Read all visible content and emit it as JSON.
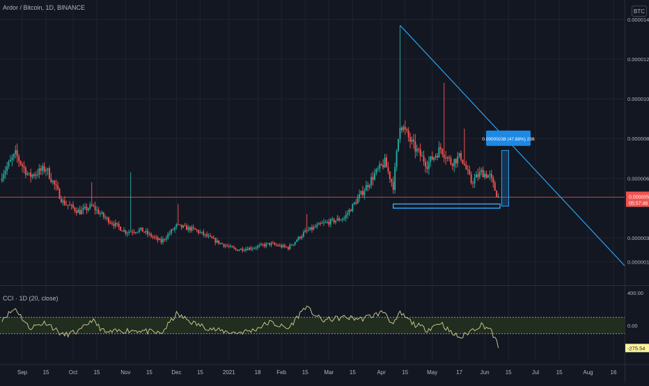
{
  "header": {
    "symbol_line": "Ardor / Bitcoin, 1D, BINANCE",
    "currency_badge": "BTC"
  },
  "indicator": {
    "legend": "CCI · 1D (20, close)"
  },
  "colors": {
    "background": "#131722",
    "up": "#26a69a",
    "down": "#ef5350",
    "drawing": "#2ea3f2",
    "cci_line": "#c8c48a",
    "cci_band": "#22301f",
    "price_line": "#ef5350",
    "label_blue": "#1e88e5",
    "label_yellow": "#fff59d"
  },
  "chart_data": [
    {
      "type": "candlestick",
      "title": "Ardor / Bitcoin, 1D, BINANCE",
      "y_tick_labels": [
        "0.00001400",
        "0.00001200",
        "0.00001000",
        "0.00000800",
        "0.00000600",
        "0.00000300",
        "0.00000180"
      ],
      "y_tick_values": [
        1.4e-05,
        1.2e-05,
        1e-05,
        8e-06,
        6e-06,
        3e-06,
        1.8e-06
      ],
      "x_tick_labels": [
        "Sep",
        "15",
        "Oct",
        "15",
        "Nov",
        "15",
        "Dec",
        "15",
        "2021",
        "18",
        "Feb",
        "15",
        "Mar",
        "15",
        "Apr",
        "15",
        "May",
        "17",
        "Jun",
        "15",
        "Jul",
        "15",
        "Aug",
        "16"
      ],
      "x_tick_dates": [
        "2020-09-01",
        "2020-09-15",
        "2020-10-01",
        "2020-10-15",
        "2020-11-01",
        "2020-11-15",
        "2020-12-01",
        "2020-12-15",
        "2021-01-01",
        "2021-01-18",
        "2021-02-01",
        "2021-02-15",
        "2021-03-01",
        "2021-03-15",
        "2021-04-01",
        "2021-04-15",
        "2021-05-01",
        "2021-05-17",
        "2021-06-01",
        "2021-06-15",
        "2021-07-01",
        "2021-07-15",
        "2021-08-01",
        "2021-08-16"
      ],
      "current_price": "0.00000505",
      "countdown": "05:57:48",
      "measure_label": "0.00000238 (47.88%) 238",
      "anchors": [
        {
          "date": "2020-08-20",
          "close": 6.2e-06
        },
        {
          "date": "2020-08-28",
          "close": 7.2e-06
        },
        {
          "date": "2020-09-05",
          "close": 6.1e-06
        },
        {
          "date": "2020-09-15",
          "close": 6.5e-06
        },
        {
          "date": "2020-09-25",
          "close": 4.8e-06
        },
        {
          "date": "2020-10-05",
          "close": 4.3e-06
        },
        {
          "date": "2020-10-12",
          "close": 4.6e-06
        },
        {
          "date": "2020-10-20",
          "close": 4e-06
        },
        {
          "date": "2020-11-01",
          "close": 3.3e-06
        },
        {
          "date": "2020-11-10",
          "close": 3.4e-06
        },
        {
          "date": "2020-11-22",
          "close": 2.8e-06
        },
        {
          "date": "2020-12-01",
          "close": 3.6e-06
        },
        {
          "date": "2020-12-12",
          "close": 3.4e-06
        },
        {
          "date": "2020-12-25",
          "close": 2.8e-06
        },
        {
          "date": "2021-01-05",
          "close": 2.4e-06
        },
        {
          "date": "2021-01-15",
          "close": 2.5e-06
        },
        {
          "date": "2021-01-25",
          "close": 2.7e-06
        },
        {
          "date": "2021-02-05",
          "close": 2.5e-06
        },
        {
          "date": "2021-02-15",
          "close": 3.3e-06
        },
        {
          "date": "2021-02-25",
          "close": 3.7e-06
        },
        {
          "date": "2021-03-10",
          "close": 4e-06
        },
        {
          "date": "2021-03-20",
          "close": 5.2e-06
        },
        {
          "date": "2021-03-28",
          "close": 6.2e-06
        },
        {
          "date": "2021-04-03",
          "close": 6.8e-06
        },
        {
          "date": "2021-04-08",
          "close": 5.6e-06
        },
        {
          "date": "2021-04-12",
          "close": 8.8e-06
        },
        {
          "date": "2021-04-20",
          "close": 7.6e-06
        },
        {
          "date": "2021-04-28",
          "close": 6.7e-06
        },
        {
          "date": "2021-05-06",
          "close": 7.5e-06
        },
        {
          "date": "2021-05-12",
          "close": 6.8e-06
        },
        {
          "date": "2021-05-18",
          "close": 7.1e-06
        },
        {
          "date": "2021-05-24",
          "close": 5.8e-06
        },
        {
          "date": "2021-05-30",
          "close": 6.3e-06
        },
        {
          "date": "2021-06-04",
          "close": 6.1e-06
        },
        {
          "date": "2021-06-08",
          "close": 5.2e-06
        },
        {
          "date": "2021-06-09",
          "close": 5.05e-06
        }
      ],
      "spikes": [
        {
          "date": "2020-10-12",
          "high": 5.8e-06
        },
        {
          "date": "2020-11-04",
          "high": 6.3e-06
        },
        {
          "date": "2020-12-02",
          "high": 4.7e-06
        },
        {
          "date": "2021-02-16",
          "high": 4.2e-06
        },
        {
          "date": "2021-04-12",
          "high": 1.37e-05
        },
        {
          "date": "2021-05-08",
          "high": 1.08e-05
        },
        {
          "date": "2021-05-20",
          "high": 8.5e-06
        }
      ]
    },
    {
      "type": "line",
      "title": "CCI · 1D (20, close)",
      "y_tick_labels": [
        "400.00",
        "0.00",
        "-275.54"
      ],
      "y_tick_values": [
        400,
        0,
        -275.54
      ],
      "bands": [
        100,
        -100
      ],
      "anchors": [
        {
          "date": "2020-08-20",
          "value": 80
        },
        {
          "date": "2020-08-28",
          "value": 210
        },
        {
          "date": "2020-09-05",
          "value": -30
        },
        {
          "date": "2020-09-15",
          "value": 40
        },
        {
          "date": "2020-09-25",
          "value": -120
        },
        {
          "date": "2020-10-05",
          "value": -70
        },
        {
          "date": "2020-10-12",
          "value": 70
        },
        {
          "date": "2020-10-20",
          "value": -90
        },
        {
          "date": "2020-11-01",
          "value": -60
        },
        {
          "date": "2020-11-10",
          "value": -60
        },
        {
          "date": "2020-11-22",
          "value": -100
        },
        {
          "date": "2020-12-01",
          "value": 140
        },
        {
          "date": "2020-12-12",
          "value": 20
        },
        {
          "date": "2020-12-25",
          "value": -60
        },
        {
          "date": "2021-01-05",
          "value": -90
        },
        {
          "date": "2021-01-15",
          "value": -60
        },
        {
          "date": "2021-01-25",
          "value": 40
        },
        {
          "date": "2021-02-05",
          "value": -40
        },
        {
          "date": "2021-02-15",
          "value": 230
        },
        {
          "date": "2021-02-25",
          "value": 60
        },
        {
          "date": "2021-03-10",
          "value": 100
        },
        {
          "date": "2021-03-20",
          "value": 80
        },
        {
          "date": "2021-03-28",
          "value": 130
        },
        {
          "date": "2021-04-03",
          "value": 170
        },
        {
          "date": "2021-04-08",
          "value": 0
        },
        {
          "date": "2021-04-12",
          "value": 150
        },
        {
          "date": "2021-04-20",
          "value": 20
        },
        {
          "date": "2021-04-28",
          "value": -50
        },
        {
          "date": "2021-05-06",
          "value": 40
        },
        {
          "date": "2021-05-12",
          "value": -90
        },
        {
          "date": "2021-05-18",
          "value": -150
        },
        {
          "date": "2021-05-24",
          "value": -60
        },
        {
          "date": "2021-05-30",
          "value": 10
        },
        {
          "date": "2021-06-04",
          "value": -40
        },
        {
          "date": "2021-06-08",
          "value": -200
        },
        {
          "date": "2021-06-09",
          "value": -275.54
        }
      ]
    }
  ]
}
